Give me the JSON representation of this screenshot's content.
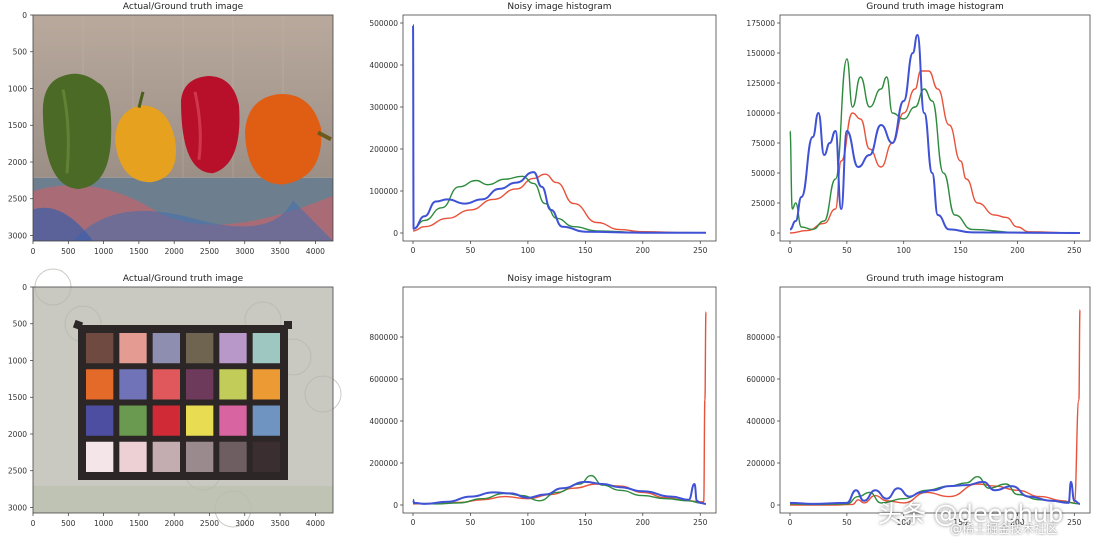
{
  "chart_data": [
    {
      "type": "image",
      "title": "Actual/Ground truth image",
      "content": "peppers",
      "x_ticks": [
        "0",
        "500",
        "1000",
        "1500",
        "2000",
        "2500",
        "3000",
        "3500",
        "4000"
      ],
      "y_ticks": [
        "0",
        "500",
        "1000",
        "1500",
        "2000",
        "2500",
        "3000"
      ]
    },
    {
      "type": "line",
      "title": "Noisy image histogram",
      "xlim": [
        0,
        255
      ],
      "ylim": [
        0,
        500000
      ],
      "x_ticks": [
        "0",
        "50",
        "100",
        "150",
        "200",
        "250"
      ],
      "y_ticks": [
        "0",
        "100000",
        "200000",
        "300000",
        "400000",
        "500000"
      ],
      "series": [
        {
          "color": "#e8523a",
          "points": [
            [
              0,
              5000
            ],
            [
              10,
              15000
            ],
            [
              30,
              35000
            ],
            [
              50,
              55000
            ],
            [
              70,
              80000
            ],
            [
              90,
              105000
            ],
            [
              105,
              130000
            ],
            [
              115,
              140000
            ],
            [
              125,
              120000
            ],
            [
              140,
              70000
            ],
            [
              160,
              25000
            ],
            [
              180,
              8000
            ],
            [
              200,
              3000
            ],
            [
              240,
              1000
            ],
            [
              255,
              500
            ]
          ]
        },
        {
          "color": "#2e8b3e",
          "points": [
            [
              0,
              10000
            ],
            [
              10,
              30000
            ],
            [
              25,
              60000
            ],
            [
              40,
              110000
            ],
            [
              55,
              125000
            ],
            [
              65,
              115000
            ],
            [
              80,
              128000
            ],
            [
              95,
              135000
            ],
            [
              105,
              118000
            ],
            [
              115,
              70000
            ],
            [
              125,
              35000
            ],
            [
              140,
              15000
            ],
            [
              160,
              5000
            ],
            [
              200,
              1000
            ],
            [
              255,
              500
            ]
          ]
        },
        {
          "color": "#3f51d4",
          "points": [
            [
              0,
              495000
            ],
            [
              0.5,
              10000
            ],
            [
              10,
              40000
            ],
            [
              20,
              75000
            ],
            [
              30,
              80000
            ],
            [
              45,
              70000
            ],
            [
              60,
              80000
            ],
            [
              75,
              105000
            ],
            [
              90,
              120000
            ],
            [
              105,
              145000
            ],
            [
              112,
              110000
            ],
            [
              120,
              55000
            ],
            [
              130,
              15000
            ],
            [
              150,
              3000
            ],
            [
              200,
              800
            ],
            [
              255,
              500
            ]
          ]
        }
      ]
    },
    {
      "type": "line",
      "title": "Ground truth image histogram",
      "xlim": [
        0,
        255
      ],
      "ylim": [
        0,
        175000
      ],
      "x_ticks": [
        "0",
        "50",
        "100",
        "150",
        "200",
        "250"
      ],
      "y_ticks": [
        "0",
        "25000",
        "50000",
        "75000",
        "100000",
        "125000",
        "150000",
        "175000"
      ],
      "series": [
        {
          "color": "#e8523a",
          "points": [
            [
              0,
              0
            ],
            [
              15,
              2000
            ],
            [
              30,
              8000
            ],
            [
              40,
              20000
            ],
            [
              45,
              60000
            ],
            [
              55,
              100000
            ],
            [
              62,
              95000
            ],
            [
              70,
              70000
            ],
            [
              80,
              55000
            ],
            [
              90,
              75000
            ],
            [
              100,
              100000
            ],
            [
              110,
              120000
            ],
            [
              115,
              135000
            ],
            [
              122,
              135000
            ],
            [
              130,
              120000
            ],
            [
              140,
              90000
            ],
            [
              150,
              60000
            ],
            [
              155,
              45000
            ],
            [
              165,
              25000
            ],
            [
              180,
              15000
            ],
            [
              190,
              13000
            ],
            [
              200,
              5000
            ],
            [
              210,
              1000
            ],
            [
              255,
              0
            ]
          ]
        },
        {
          "color": "#2e8b3e",
          "points": [
            [
              0,
              85000
            ],
            [
              2,
              20000
            ],
            [
              5,
              25000
            ],
            [
              10,
              5000
            ],
            [
              20,
              3000
            ],
            [
              30,
              10000
            ],
            [
              40,
              45000
            ],
            [
              50,
              145000
            ],
            [
              55,
              105000
            ],
            [
              62,
              130000
            ],
            [
              70,
              105000
            ],
            [
              80,
              120000
            ],
            [
              85,
              130000
            ],
            [
              90,
              100000
            ],
            [
              100,
              95000
            ],
            [
              110,
              105000
            ],
            [
              118,
              120000
            ],
            [
              125,
              110000
            ],
            [
              135,
              50000
            ],
            [
              145,
              15000
            ],
            [
              160,
              3000
            ],
            [
              200,
              500
            ],
            [
              255,
              0
            ]
          ]
        },
        {
          "color": "#3f51d4",
          "points": [
            [
              0,
              3000
            ],
            [
              5,
              10000
            ],
            [
              10,
              30000
            ],
            [
              20,
              80000
            ],
            [
              25,
              100000
            ],
            [
              30,
              65000
            ],
            [
              35,
              75000
            ],
            [
              40,
              85000
            ],
            [
              45,
              20000
            ],
            [
              50,
              85000
            ],
            [
              60,
              55000
            ],
            [
              70,
              65000
            ],
            [
              80,
              90000
            ],
            [
              90,
              75000
            ],
            [
              100,
              110000
            ],
            [
              108,
              150000
            ],
            [
              112,
              165000
            ],
            [
              118,
              100000
            ],
            [
              125,
              50000
            ],
            [
              130,
              15000
            ],
            [
              140,
              3000
            ],
            [
              160,
              500
            ],
            [
              255,
              0
            ]
          ]
        }
      ]
    },
    {
      "type": "image",
      "title": "Actual/Ground truth image",
      "content": "color checker",
      "x_ticks": [
        "0",
        "500",
        "1000",
        "1500",
        "2000",
        "2500",
        "3000",
        "3500",
        "4000"
      ],
      "y_ticks": [
        "0",
        "500",
        "1000",
        "1500",
        "2000",
        "2500",
        "3000"
      ]
    },
    {
      "type": "line",
      "title": "Noisy image histogram",
      "xlim": [
        0,
        255
      ],
      "ylim": [
        0,
        1000000
      ],
      "x_ticks": [
        "0",
        "50",
        "100",
        "150",
        "200",
        "250"
      ],
      "y_ticks": [
        "0",
        "200000",
        "400000",
        "600000",
        "800000"
      ],
      "series": [
        {
          "color": "#e8523a",
          "points": [
            [
              0,
              5000
            ],
            [
              20,
              8000
            ],
            [
              40,
              12000
            ],
            [
              60,
              25000
            ],
            [
              80,
              40000
            ],
            [
              100,
              30000
            ],
            [
              120,
              50000
            ],
            [
              140,
              80000
            ],
            [
              160,
              100000
            ],
            [
              180,
              90000
            ],
            [
              200,
              60000
            ],
            [
              220,
              35000
            ],
            [
              240,
              20000
            ],
            [
              250,
              15000
            ],
            [
              253,
              15000
            ],
            [
              254,
              500000
            ],
            [
              255,
              920000
            ]
          ]
        },
        {
          "color": "#2e8b3e",
          "points": [
            [
              0,
              8000
            ],
            [
              20,
              5000
            ],
            [
              40,
              10000
            ],
            [
              60,
              30000
            ],
            [
              80,
              55000
            ],
            [
              95,
              45000
            ],
            [
              110,
              20000
            ],
            [
              125,
              60000
            ],
            [
              145,
              100000
            ],
            [
              155,
              140000
            ],
            [
              165,
              95000
            ],
            [
              180,
              70000
            ],
            [
              200,
              45000
            ],
            [
              220,
              30000
            ],
            [
              240,
              20000
            ],
            [
              250,
              10000
            ],
            [
              255,
              5000
            ]
          ]
        },
        {
          "color": "#3f51d4",
          "points": [
            [
              0,
              25000
            ],
            [
              1,
              10000
            ],
            [
              10,
              5000
            ],
            [
              30,
              15000
            ],
            [
              50,
              40000
            ],
            [
              70,
              60000
            ],
            [
              85,
              55000
            ],
            [
              100,
              35000
            ],
            [
              115,
              50000
            ],
            [
              130,
              80000
            ],
            [
              150,
              110000
            ],
            [
              165,
              100000
            ],
            [
              180,
              85000
            ],
            [
              200,
              65000
            ],
            [
              225,
              40000
            ],
            [
              240,
              25000
            ],
            [
              245,
              100000
            ],
            [
              247,
              20000
            ],
            [
              250,
              10000
            ],
            [
              255,
              5000
            ]
          ]
        }
      ]
    },
    {
      "type": "line",
      "title": "Ground truth image histogram",
      "xlim": [
        0,
        255
      ],
      "ylim": [
        0,
        1000000
      ],
      "x_ticks": [
        "0",
        "50",
        "100",
        "150",
        "200",
        "250"
      ],
      "y_ticks": [
        "0",
        "200000",
        "400000",
        "600000",
        "800000"
      ],
      "series": [
        {
          "color": "#e8523a",
          "points": [
            [
              0,
              0
            ],
            [
              40,
              0
            ],
            [
              55,
              3000
            ],
            [
              60,
              25000
            ],
            [
              65,
              10000
            ],
            [
              75,
              45000
            ],
            [
              85,
              20000
            ],
            [
              100,
              10000
            ],
            [
              120,
              60000
            ],
            [
              140,
              40000
            ],
            [
              165,
              100000
            ],
            [
              180,
              90000
            ],
            [
              200,
              70000
            ],
            [
              220,
              40000
            ],
            [
              240,
              20000
            ],
            [
              250,
              10000
            ],
            [
              254,
              500000
            ],
            [
              255,
              930000
            ]
          ]
        },
        {
          "color": "#2e8b3e",
          "points": [
            [
              0,
              5000
            ],
            [
              20,
              3000
            ],
            [
              50,
              5000
            ],
            [
              60,
              40000
            ],
            [
              70,
              60000
            ],
            [
              80,
              10000
            ],
            [
              100,
              30000
            ],
            [
              120,
              70000
            ],
            [
              140,
              90000
            ],
            [
              155,
              105000
            ],
            [
              165,
              135000
            ],
            [
              175,
              80000
            ],
            [
              190,
              100000
            ],
            [
              200,
              50000
            ],
            [
              220,
              25000
            ],
            [
              240,
              15000
            ],
            [
              255,
              5000
            ]
          ]
        },
        {
          "color": "#3f51d4",
          "points": [
            [
              0,
              10000
            ],
            [
              20,
              5000
            ],
            [
              50,
              10000
            ],
            [
              58,
              70000
            ],
            [
              65,
              20000
            ],
            [
              75,
              70000
            ],
            [
              85,
              30000
            ],
            [
              95,
              80000
            ],
            [
              105,
              40000
            ],
            [
              115,
              60000
            ],
            [
              125,
              70000
            ],
            [
              140,
              90000
            ],
            [
              155,
              95000
            ],
            [
              170,
              110000
            ],
            [
              180,
              70000
            ],
            [
              195,
              90000
            ],
            [
              210,
              40000
            ],
            [
              230,
              20000
            ],
            [
              245,
              10000
            ],
            [
              247,
              110000
            ],
            [
              250,
              20000
            ],
            [
              255,
              5000
            ]
          ]
        }
      ]
    }
  ],
  "watermark": {
    "main": "头条 @deephub",
    "sub": "@稀土掘金技术社区"
  }
}
